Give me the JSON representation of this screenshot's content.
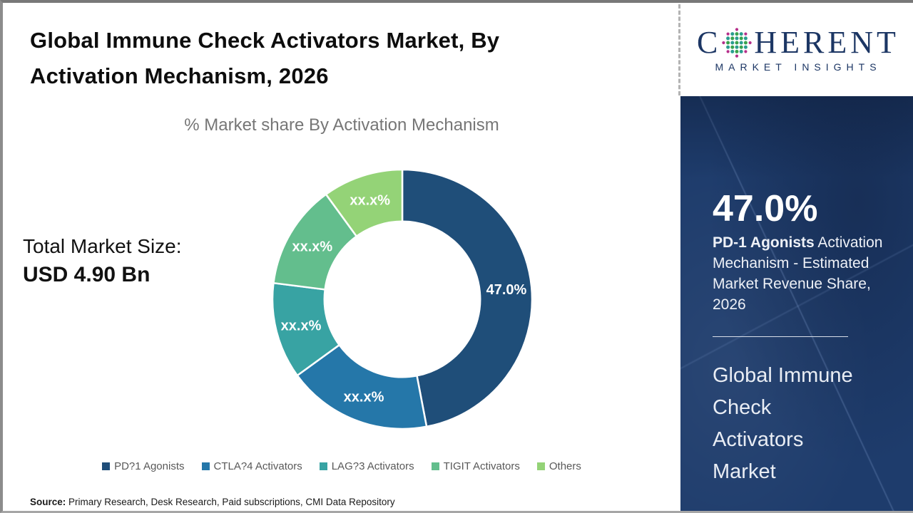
{
  "header": {
    "title": "Global Immune Check Activators Market, By Activation Mechanism, 2026",
    "logo": {
      "word_start": "C",
      "word_end": "HERENT",
      "tagline": "MARKET INSIGHTS",
      "brand_navy": "#1c3664",
      "globe_green": "#3aa24d",
      "globe_teal": "#2a9d8f",
      "globe_magenta": "#b52f8a"
    }
  },
  "stats": {
    "total_label": "Total Market Size:",
    "total_value": "USD 4.90 Bn"
  },
  "chart_data": {
    "type": "pie",
    "style": "donut",
    "title": "% Market share By Activation Mechanism",
    "hole_ratio": 0.6,
    "legend_position": "bottom",
    "segments": [
      {
        "label": "PD?1 Agonists",
        "data_label": "47.0%",
        "value": 47.0,
        "color": "#1f4e79"
      },
      {
        "label": "CTLA?4 Activators",
        "data_label": "xx.x%",
        "value": 18.0,
        "color": "#2577a9"
      },
      {
        "label": "LAG?3 Activators",
        "data_label": "xx.x%",
        "value": 12.0,
        "color": "#38a3a3"
      },
      {
        "label": "TIGIT Activators",
        "data_label": "xx.x%",
        "value": 13.0,
        "color": "#63be8d"
      },
      {
        "label": "Others",
        "data_label": "xx.x%",
        "value": 10.0,
        "color": "#94d377"
      }
    ]
  },
  "sidebar": {
    "stat_value": "47.0%",
    "stat_desc_bold": "PD-1 Agonists",
    "stat_desc_rest": " Activation Mechanism - Estimated Market Revenue Share, 2026",
    "market_title_lines": [
      "Global Immune",
      "Check",
      "Activators",
      "Market"
    ],
    "panel_navy": "#1e3c6c"
  },
  "footer": {
    "source_label": "Source:",
    "source_text": " Primary Research, Desk Research, Paid subscriptions, CMI Data Repository"
  }
}
